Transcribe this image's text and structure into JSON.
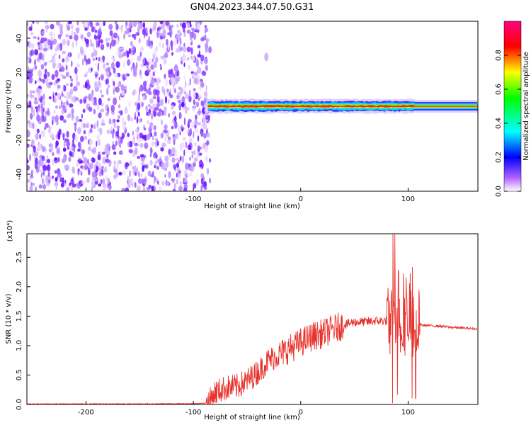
{
  "title": "GN04.2023.344.07.50.G31",
  "chart_data": [
    {
      "type": "heatmap",
      "xlabel": "Height of straight line (km)",
      "ylabel": "Frequency (Hz)",
      "xlim": [
        -255,
        165
      ],
      "ylim": [
        -50,
        50
      ],
      "xticks": [
        -200,
        -100,
        0,
        100
      ],
      "yticks": [
        40,
        20,
        0,
        -20,
        -40
      ],
      "colorbar": {
        "label": "Normalized spectral amplitude",
        "range": [
          0,
          1
        ],
        "ticks": [
          "0.0",
          "0.2",
          "0.4",
          "0.6",
          "0.8"
        ],
        "tick_values": [
          0.0,
          0.2,
          0.4,
          0.6,
          0.8
        ],
        "colors": [
          "#ffffff",
          "#a000ff",
          "#0000ff",
          "#00ffff",
          "#00ff00",
          "#ffff00",
          "#ff0000",
          "#ff0080"
        ]
      },
      "noise_region_x": [
        -255,
        -87
      ],
      "signal_band": {
        "x": [
          -87,
          165
        ],
        "center_hz": 0,
        "halfwidth_hz": 3
      },
      "artifact": {
        "x": -32,
        "y": 29
      }
    },
    {
      "type": "line",
      "xlabel": "Height of straight line (km)",
      "ylabel": "SNR (10 * v/v)",
      "scale_label": "(x10⁴)",
      "xlim": [
        -255,
        165
      ],
      "ylim": [
        0,
        2.9
      ],
      "xticks": [
        -200,
        -100,
        0,
        100
      ],
      "yticks": [
        0.0,
        0.5,
        1.0,
        1.5,
        2.0,
        2.5
      ],
      "series": [
        {
          "color": "#e8312b",
          "x": [
            -255,
            -200,
            -150,
            -100,
            -90,
            -85,
            -80,
            -70,
            -60,
            -50,
            -40,
            -30,
            -20,
            -10,
            0,
            10,
            20,
            30,
            40,
            50,
            60,
            70,
            80,
            90,
            100,
            105,
            110,
            112,
            120,
            130,
            140,
            150,
            165
          ],
          "y": [
            0.01,
            0.01,
            0.01,
            0.015,
            0.02,
            0.05,
            0.2,
            0.28,
            0.3,
            0.4,
            0.55,
            0.75,
            0.85,
            0.95,
            1.05,
            1.15,
            1.2,
            1.28,
            1.35,
            1.4,
            1.4,
            1.42,
            1.42,
            1.45,
            1.4,
            1.38,
            1.38,
            1.35,
            1.34,
            1.33,
            1.31,
            1.3,
            1.28
          ]
        }
      ]
    }
  ]
}
